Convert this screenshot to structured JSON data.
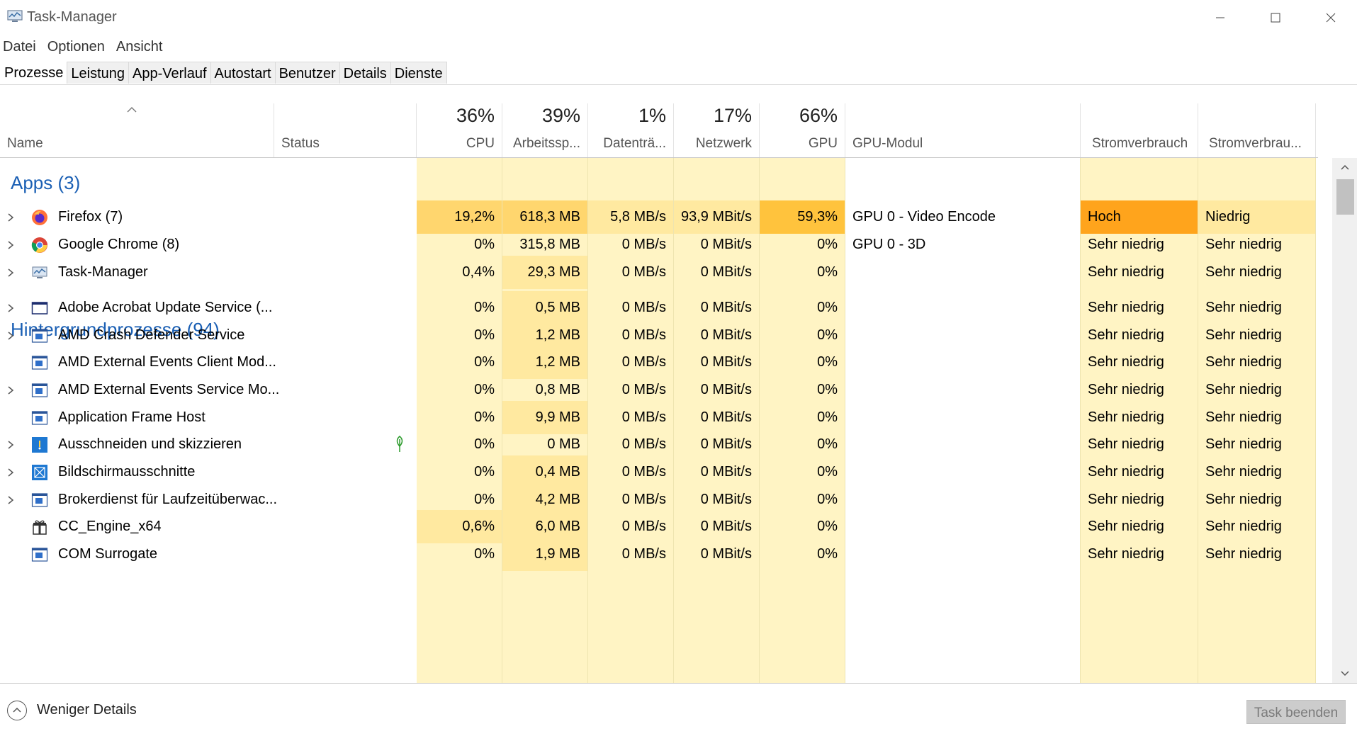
{
  "window": {
    "title": "Task-Manager"
  },
  "menu": [
    "Datei",
    "Optionen",
    "Ansicht"
  ],
  "tabs": [
    "Prozesse",
    "Leistung",
    "App-Verlauf",
    "Autostart",
    "Benutzer",
    "Details",
    "Dienste"
  ],
  "header": {
    "name": "Name",
    "status": "Status",
    "cpu": {
      "pct": "36%",
      "label": "CPU"
    },
    "memory": {
      "pct": "39%",
      "label": "Arbeitssp..."
    },
    "disk": {
      "pct": "1%",
      "label": "Datenträ..."
    },
    "network": {
      "pct": "17%",
      "label": "Netzwerk"
    },
    "gpu": {
      "pct": "66%",
      "label": "GPU"
    },
    "gpu_engine": "GPU-Modul",
    "power": "Stromverbrauch",
    "power_trend": "Stromverbrau..."
  },
  "groups": {
    "apps": "Apps (3)",
    "background": "Hintergrundprozesse (94)"
  },
  "apps": [
    {
      "name": "Firefox (7)",
      "icon": "firefox-icon",
      "expandable": true,
      "cpu": "19,2%",
      "mem": "618,3 MB",
      "disk": "5,8 MB/s",
      "net": "93,9 MBit/s",
      "gpu": "59,3%",
      "gpu_engine": "GPU 0 - Video Encode",
      "power": "Hoch",
      "power_trend": "Niedrig"
    },
    {
      "name": "Google Chrome (8)",
      "icon": "chrome-icon",
      "expandable": true,
      "cpu": "0%",
      "mem": "315,8 MB",
      "disk": "0 MB/s",
      "net": "0 MBit/s",
      "gpu": "0%",
      "gpu_engine": "GPU 0 - 3D",
      "power": "Sehr niedrig",
      "power_trend": "Sehr niedrig"
    },
    {
      "name": "Task-Manager",
      "icon": "task-manager-icon",
      "expandable": true,
      "cpu": "0,4%",
      "mem": "29,3 MB",
      "disk": "0 MB/s",
      "net": "0 MBit/s",
      "gpu": "0%",
      "gpu_engine": "",
      "power": "Sehr niedrig",
      "power_trend": "Sehr niedrig"
    }
  ],
  "background": [
    {
      "name": "Adobe Acrobat Update Service (...",
      "icon": "window-icon",
      "expandable": true,
      "cpu": "0%",
      "mem": "0,5 MB",
      "disk": "0 MB/s",
      "net": "0 MBit/s",
      "gpu": "0%",
      "power": "Sehr niedrig",
      "power_trend": "Sehr niedrig"
    },
    {
      "name": "AMD Crash Defender Service",
      "icon": "service-icon",
      "expandable": true,
      "cpu": "0%",
      "mem": "1,2 MB",
      "disk": "0 MB/s",
      "net": "0 MBit/s",
      "gpu": "0%",
      "power": "Sehr niedrig",
      "power_trend": "Sehr niedrig"
    },
    {
      "name": "AMD External Events Client Mod...",
      "icon": "service-icon",
      "expandable": false,
      "cpu": "0%",
      "mem": "1,2 MB",
      "disk": "0 MB/s",
      "net": "0 MBit/s",
      "gpu": "0%",
      "power": "Sehr niedrig",
      "power_trend": "Sehr niedrig"
    },
    {
      "name": "AMD External Events Service Mo...",
      "icon": "service-icon",
      "expandable": true,
      "cpu": "0%",
      "mem": "0,8 MB",
      "disk": "0 MB/s",
      "net": "0 MBit/s",
      "gpu": "0%",
      "power": "Sehr niedrig",
      "power_trend": "Sehr niedrig"
    },
    {
      "name": "Application Frame Host",
      "icon": "service-icon",
      "expandable": false,
      "cpu": "0%",
      "mem": "9,9 MB",
      "disk": "0 MB/s",
      "net": "0 MBit/s",
      "gpu": "0%",
      "power": "Sehr niedrig",
      "power_trend": "Sehr niedrig"
    },
    {
      "name": "Ausschneiden und skizzieren",
      "icon": "snip-sketch-icon",
      "expandable": true,
      "suspended": true,
      "cpu": "0%",
      "mem": "0 MB",
      "disk": "0 MB/s",
      "net": "0 MBit/s",
      "gpu": "0%",
      "power": "Sehr niedrig",
      "power_trend": "Sehr niedrig"
    },
    {
      "name": "Bildschirmausschnitte",
      "icon": "screenclip-icon",
      "expandable": true,
      "cpu": "0%",
      "mem": "0,4 MB",
      "disk": "0 MB/s",
      "net": "0 MBit/s",
      "gpu": "0%",
      "power": "Sehr niedrig",
      "power_trend": "Sehr niedrig"
    },
    {
      "name": "Brokerdienst für Laufzeitüberwac...",
      "icon": "service-icon",
      "expandable": true,
      "cpu": "0%",
      "mem": "4,2 MB",
      "disk": "0 MB/s",
      "net": "0 MBit/s",
      "gpu": "0%",
      "power": "Sehr niedrig",
      "power_trend": "Sehr niedrig"
    },
    {
      "name": "CC_Engine_x64",
      "icon": "gift-icon",
      "expandable": false,
      "cpu": "0,6%",
      "mem": "6,0 MB",
      "disk": "0 MB/s",
      "net": "0 MBit/s",
      "gpu": "0%",
      "power": "Sehr niedrig",
      "power_trend": "Sehr niedrig"
    },
    {
      "name": "COM Surrogate",
      "icon": "service-icon",
      "expandable": false,
      "cpu": "0%",
      "mem": "1,9 MB",
      "disk": "0 MB/s",
      "net": "0 MBit/s",
      "gpu": "0%",
      "power": "Sehr niedrig",
      "power_trend": "Sehr niedrig"
    }
  ],
  "footer": {
    "fewer_details": "Weniger Details",
    "end_task": "Task beenden"
  },
  "colors": {
    "cell_bg": "#fff4c4",
    "cpu_high": "#ffd66e",
    "gpu_high": "#ffc33d",
    "power_high": "#ffa41c",
    "mem_mid": "#ffe9a0",
    "group_title": "#1a5fb4"
  }
}
